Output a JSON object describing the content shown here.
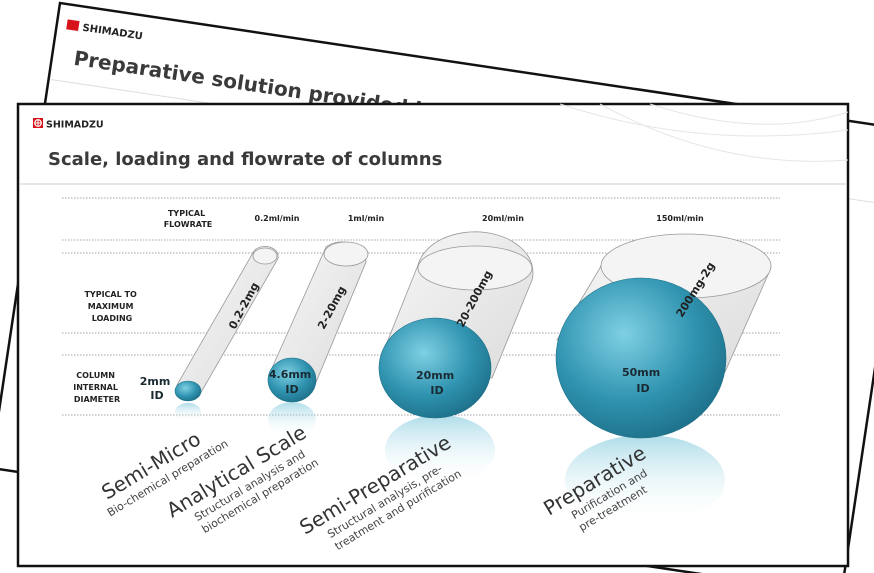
{
  "back_slide": {
    "logo": "SHIMADZU",
    "title": "Preparative solution provided by Shimadzu"
  },
  "front_slide": {
    "logo": "SHIMADZU",
    "title": "Scale, loading and flowrate of columns",
    "row_labels": {
      "flowrate": [
        "TYPICAL",
        "FLOWRATE"
      ],
      "loading": [
        "TYPICAL TO",
        "MAXIMUM",
        "LOADING"
      ],
      "diameter": [
        "COLUMN",
        "INTERNAL",
        "DIAMETER"
      ]
    },
    "columns": [
      {
        "flowrate": "0.2ml/min",
        "loading": "0.2-2mg",
        "diameter": [
          "2mm",
          "ID"
        ],
        "scale": "Semi-Micro",
        "use": [
          "Bio-chemical preparation"
        ]
      },
      {
        "flowrate": "1ml/min",
        "loading": "2-20mg",
        "diameter": [
          "4.6mm",
          "ID"
        ],
        "scale": "Analytical Scale",
        "use": [
          "Structural analysis and",
          "biochemical preparation"
        ]
      },
      {
        "flowrate": "20ml/min",
        "loading": "20-200mg",
        "diameter": [
          "20mm",
          "ID"
        ],
        "scale": "Semi-Preparative",
        "use": [
          "Structural analysis, pre-",
          "treatment and  purification"
        ]
      },
      {
        "flowrate": "150ml/min",
        "loading": "200mg-2g",
        "diameter": [
          "50mm",
          "ID"
        ],
        "scale": "Preparative",
        "use": [
          "Purification and",
          "pre-treatment"
        ]
      }
    ]
  },
  "colors": {
    "accent": "#2f93b0",
    "logo_red": "#d7141a",
    "tube": "#ececec"
  }
}
